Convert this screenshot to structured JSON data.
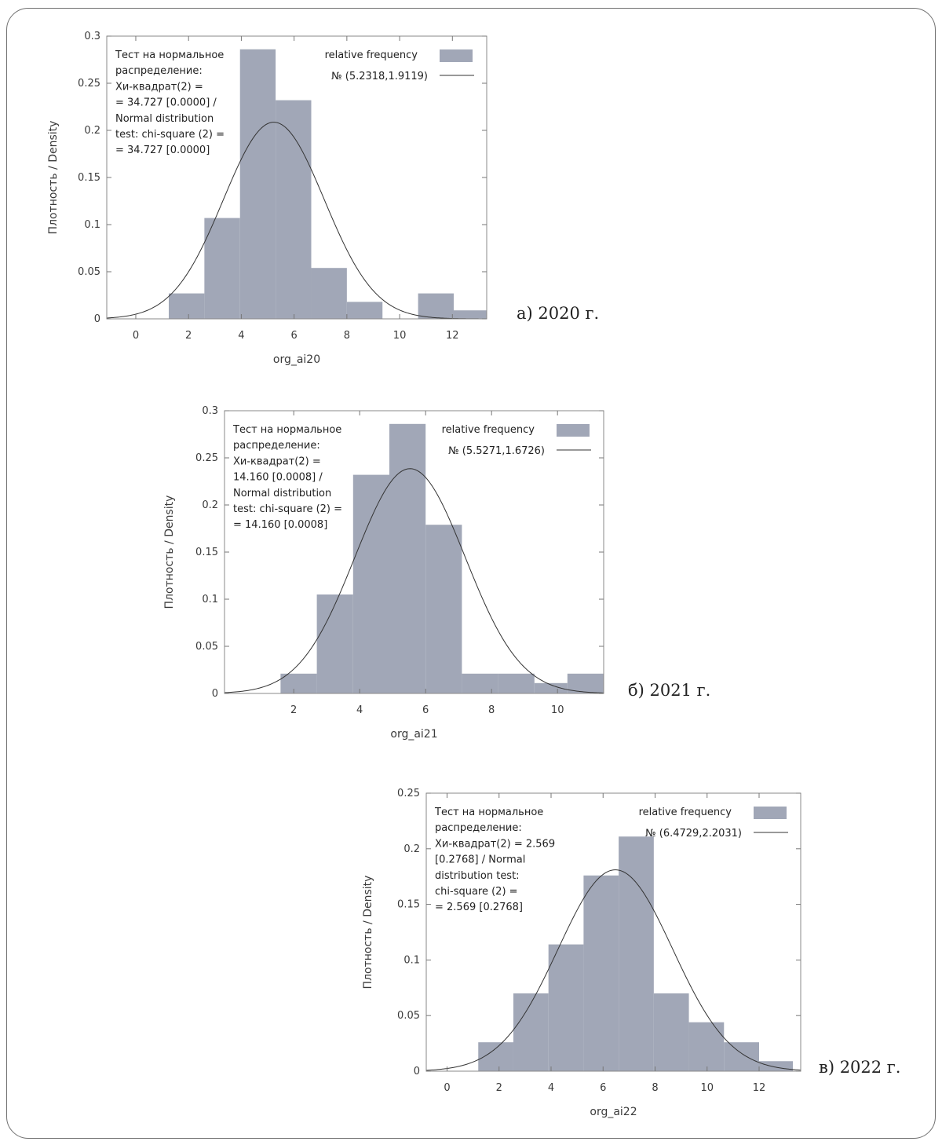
{
  "chart_data": [
    {
      "type": "bar",
      "caption": "а) 2020 г.",
      "xlabel": "org_ai20",
      "ylabel": "Плотность / Density",
      "xlim": [
        -1.1,
        13.3
      ],
      "ylim": [
        0,
        0.3
      ],
      "xticks": [
        0,
        2,
        4,
        6,
        8,
        10,
        12
      ],
      "yticks": [
        "0",
        "0.05",
        "0.1",
        "0.15",
        "0.2",
        "0.25",
        "0.3"
      ],
      "bins": [
        {
          "x0": 1.25,
          "x1": 2.6,
          "value": 0.027
        },
        {
          "x0": 2.6,
          "x1": 3.95,
          "value": 0.107
        },
        {
          "x0": 3.95,
          "x1": 5.3,
          "value": 0.286
        },
        {
          "x0": 5.3,
          "x1": 6.65,
          "value": 0.232
        },
        {
          "x0": 6.65,
          "x1": 8.0,
          "value": 0.054
        },
        {
          "x0": 8.0,
          "x1": 9.35,
          "value": 0.018
        },
        {
          "x0": 10.7,
          "x1": 12.05,
          "value": 0.027
        },
        {
          "x0": 12.05,
          "x1": 13.3,
          "value": 0.009
        }
      ],
      "normal": {
        "mean": 5.2318,
        "sd": 1.9119
      },
      "note_lines": [
        "Тест на нормальное",
        "распределение:",
        "Хи-квадрат(2) =",
        "= 34.727 [0.0000] /",
        "Normal distribution",
        "test: chi-square (2) =",
        "= 34.727 [0.0000]"
      ],
      "legend": {
        "bars": "relative frequency",
        "line": "№ (5.2318,1.9119)"
      },
      "colors": {
        "bar": "#a1a7b7",
        "line": "#333333"
      }
    },
    {
      "type": "bar",
      "caption": "б) 2021 г.",
      "xlabel": "org_ai21",
      "ylabel": "Плотность / Density",
      "xlim": [
        -0.1,
        11.4
      ],
      "ylim": [
        0,
        0.3
      ],
      "xticks": [
        2,
        4,
        6,
        8,
        10
      ],
      "yticks": [
        "0",
        "0.05",
        "0.1",
        "0.15",
        "0.2",
        "0.25",
        "0.3"
      ],
      "bins": [
        {
          "x0": 1.6,
          "x1": 2.7,
          "value": 0.021
        },
        {
          "x0": 2.7,
          "x1": 3.8,
          "value": 0.105
        },
        {
          "x0": 3.8,
          "x1": 4.9,
          "value": 0.232
        },
        {
          "x0": 4.9,
          "x1": 6.0,
          "value": 0.286
        },
        {
          "x0": 6.0,
          "x1": 7.1,
          "value": 0.179
        },
        {
          "x0": 7.1,
          "x1": 8.2,
          "value": 0.021
        },
        {
          "x0": 8.2,
          "x1": 9.3,
          "value": 0.021
        },
        {
          "x0": 9.3,
          "x1": 10.3,
          "value": 0.011
        },
        {
          "x0": 10.3,
          "x1": 11.4,
          "value": 0.021
        }
      ],
      "normal": {
        "mean": 5.5271,
        "sd": 1.6726
      },
      "note_lines": [
        "Тест на нормальное",
        "распределение:",
        "Хи-квадрат(2) =",
        "14.160 [0.0008] /",
        "Normal distribution",
        "test: chi-square (2) =",
        "= 14.160 [0.0008]"
      ],
      "legend": {
        "bars": "relative frequency",
        "line": "№ (5.5271,1.6726)"
      },
      "colors": {
        "bar": "#a1a7b7",
        "line": "#333333"
      }
    },
    {
      "type": "bar",
      "caption": "в) 2022 г.",
      "xlabel": "org_ai22",
      "ylabel": "Плотность / Density",
      "xlim": [
        -0.8,
        13.6
      ],
      "ylim": [
        0,
        0.25
      ],
      "xticks": [
        0,
        2,
        4,
        6,
        8,
        10,
        12
      ],
      "yticks": [
        "0",
        "0.05",
        "0.1",
        "0.15",
        "0.2",
        "0.25"
      ],
      "bins": [
        {
          "x0": 1.2,
          "x1": 2.55,
          "value": 0.026
        },
        {
          "x0": 2.55,
          "x1": 3.9,
          "value": 0.07
        },
        {
          "x0": 3.9,
          "x1": 5.25,
          "value": 0.114
        },
        {
          "x0": 5.25,
          "x1": 6.6,
          "value": 0.176
        },
        {
          "x0": 6.6,
          "x1": 7.95,
          "value": 0.211
        },
        {
          "x0": 7.95,
          "x1": 9.3,
          "value": 0.07
        },
        {
          "x0": 9.3,
          "x1": 10.65,
          "value": 0.044
        },
        {
          "x0": 10.65,
          "x1": 12.0,
          "value": 0.026
        },
        {
          "x0": 12.0,
          "x1": 13.3,
          "value": 0.009
        }
      ],
      "normal": {
        "mean": 6.4729,
        "sd": 2.2031
      },
      "note_lines": [
        "Тест на нормальное",
        "распределение:",
        "Хи-квадрат(2) = 2.569",
        "[0.2768] / Normal",
        "distribution test:",
        "chi-square (2) =",
        "= 2.569 [0.2768]"
      ],
      "legend": {
        "bars": "relative frequency",
        "line": "№ (6.4729,2.2031)"
      },
      "colors": {
        "bar": "#a1a7b7",
        "line": "#333333"
      }
    }
  ]
}
